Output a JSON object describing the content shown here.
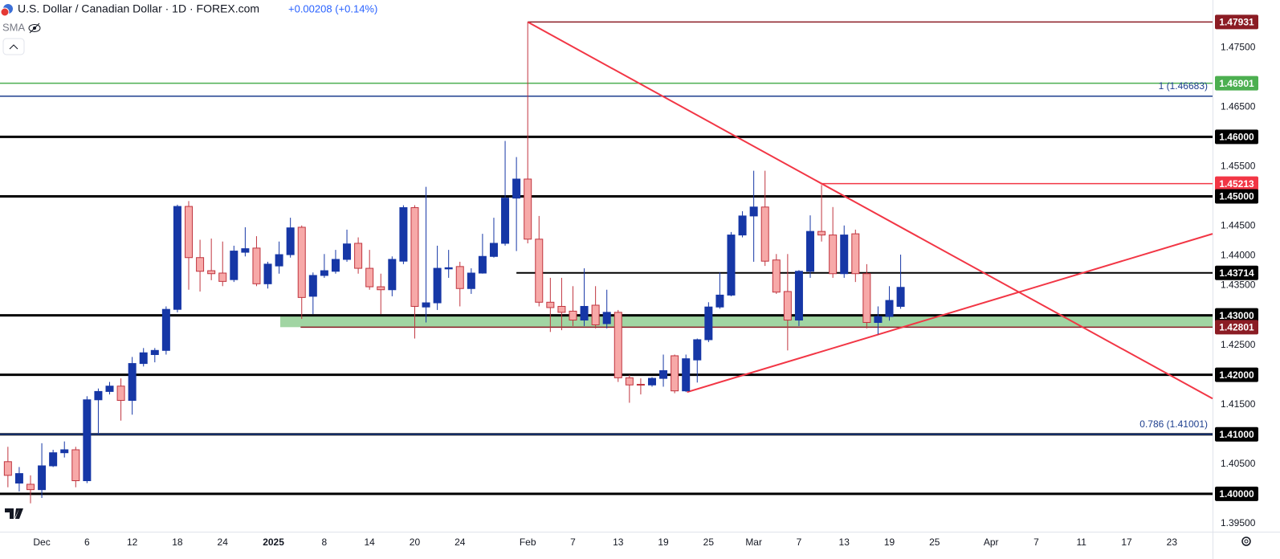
{
  "chart_data": {
    "type": "candlestick",
    "title": "U.S. Dollar / Canadian Dollar · 1D · FOREX.com",
    "change": "+0.00208 (+0.14%)",
    "indicator": "SMA",
    "up_color": "#1637a6",
    "down_color": "#f7a9a8",
    "down_border": "#c0353f",
    "open": [
      1.4054,
      1.4018,
      1.4016,
      1.4007,
      1.4047,
      1.4069,
      1.4074,
      1.4022,
      1.4158,
      1.4172,
      1.4181,
      1.4157,
      1.4219,
      1.4234,
      1.4241,
      1.431,
      1.4483,
      1.4397,
      1.4375,
      1.4371,
      1.436,
      1.4406,
      1.4413,
      1.4353,
      1.4383,
      1.4402,
      1.4448,
      1.4332,
      1.4367,
      1.4374,
      1.4394,
      1.4421,
      1.4379,
      1.4348,
      1.4343,
      1.4391,
      1.4481,
      1.4314,
      1.4321,
      1.4378,
      1.4382,
      1.4345,
      1.4371,
      1.4399,
      1.4421,
      1.4497,
      1.4529,
      1.4428,
      1.4322,
      1.4315,
      1.4307,
      1.4292,
      1.4317,
      1.4286,
      1.4305,
      1.4195,
      1.4184,
      1.4183,
      1.4194,
      1.4232,
      1.4173,
      1.4225,
      1.4259,
      1.4314,
      1.4334,
      1.4435,
      1.4467,
      1.4482,
      1.4393,
      1.434,
      1.4292,
      1.4374,
      1.4441,
      1.4435,
      1.437,
      1.4437,
      1.437,
      1.4288,
      1.4298,
      1.4315
    ],
    "high": [
      1.4079,
      1.4045,
      1.4031,
      1.4085,
      1.4074,
      1.4088,
      1.4079,
      1.4164,
      1.4177,
      1.4188,
      1.4194,
      1.423,
      1.4245,
      1.4245,
      1.4315,
      1.4486,
      1.4492,
      1.4427,
      1.4429,
      1.4424,
      1.4417,
      1.4448,
      1.4433,
      1.439,
      1.4424,
      1.4464,
      1.4451,
      1.4372,
      1.4403,
      1.441,
      1.4444,
      1.4431,
      1.441,
      1.437,
      1.4399,
      1.4485,
      1.4485,
      1.4516,
      1.4417,
      1.441,
      1.439,
      1.4379,
      1.4437,
      1.4464,
      1.4593,
      1.4566,
      1.4793,
      1.4467,
      1.4363,
      1.4363,
      1.4349,
      1.4379,
      1.4349,
      1.4343,
      1.4309,
      1.42,
      1.4194,
      1.4196,
      1.4234,
      1.4234,
      1.4234,
      1.4261,
      1.4322,
      1.4372,
      1.444,
      1.4475,
      1.4543,
      1.4543,
      1.4403,
      1.4403,
      1.4376,
      1.4468,
      1.4519,
      1.4482,
      1.4451,
      1.4444,
      1.4386,
      1.4315,
      1.4349,
      1.4402
    ],
    "low": [
      1.4011,
      1.4004,
      1.3984,
      1.3993,
      1.4045,
      1.4061,
      1.4011,
      1.4018,
      1.4099,
      1.4167,
      1.4123,
      1.4133,
      1.4214,
      1.4221,
      1.4234,
      1.4305,
      1.4343,
      1.434,
      1.4359,
      1.4349,
      1.4356,
      1.4399,
      1.4349,
      1.4345,
      1.437,
      1.4397,
      1.4294,
      1.4302,
      1.4363,
      1.437,
      1.439,
      1.437,
      1.4343,
      1.4302,
      1.4332,
      1.4386,
      1.4261,
      1.4288,
      1.4309,
      1.4363,
      1.4315,
      1.4336,
      1.437,
      1.4397,
      1.4417,
      1.4408,
      1.4421,
      1.4315,
      1.4272,
      1.4275,
      1.4282,
      1.4282,
      1.4278,
      1.4278,
      1.4188,
      1.4153,
      1.4167,
      1.418,
      1.418,
      1.4169,
      1.4171,
      1.4187,
      1.4255,
      1.4311,
      1.4332,
      1.4431,
      1.439,
      1.4383,
      1.4336,
      1.4241,
      1.4282,
      1.4363,
      1.4424,
      1.4363,
      1.4363,
      1.4356,
      1.4278,
      1.4268,
      1.4291,
      1.4311
    ],
    "close": [
      1.4031,
      1.4034,
      1.4007,
      1.4047,
      1.4069,
      1.4074,
      1.4022,
      1.4158,
      1.4172,
      1.4181,
      1.4157,
      1.4219,
      1.4237,
      1.4241,
      1.431,
      1.4483,
      1.4397,
      1.4374,
      1.437,
      1.4357,
      1.4408,
      1.4412,
      1.4353,
      1.4386,
      1.4402,
      1.4447,
      1.433,
      1.4367,
      1.4375,
      1.4394,
      1.442,
      1.4379,
      1.4348,
      1.4343,
      1.4394,
      1.4481,
      1.4315,
      1.4321,
      1.4379,
      1.438,
      1.4345,
      1.4371,
      1.4399,
      1.4421,
      1.4497,
      1.4529,
      1.4428,
      1.4322,
      1.4313,
      1.4305,
      1.4292,
      1.4315,
      1.4284,
      1.4305,
      1.4195,
      1.4183,
      1.4183,
      1.4194,
      1.4207,
      1.4173,
      1.4227,
      1.4259,
      1.4314,
      1.4334,
      1.4435,
      1.4467,
      1.4482,
      1.4391,
      1.4339,
      1.4292,
      1.4374,
      1.4441,
      1.4435,
      1.437,
      1.4435,
      1.437,
      1.4288,
      1.4298,
      1.4325,
      1.4347
    ],
    "xlim": [
      -0.7,
      106.6
    ],
    "ylim": [
      1.39363,
      1.483
    ],
    "xticks": [
      {
        "value": 3,
        "label": "Dec"
      },
      {
        "value": 7,
        "label": "6"
      },
      {
        "value": 11,
        "label": "12"
      },
      {
        "value": 15,
        "label": "18"
      },
      {
        "value": 19,
        "label": "24"
      },
      {
        "value": 23.5,
        "label": "2025"
      },
      {
        "value": 28,
        "label": "8"
      },
      {
        "value": 32,
        "label": "14"
      },
      {
        "value": 36,
        "label": "20"
      },
      {
        "value": 40,
        "label": "24"
      },
      {
        "value": 46,
        "label": "Feb"
      },
      {
        "value": 50,
        "label": "7"
      },
      {
        "value": 54,
        "label": "13"
      },
      {
        "value": 58,
        "label": "19"
      },
      {
        "value": 62,
        "label": "25"
      },
      {
        "value": 66,
        "label": "Mar"
      },
      {
        "value": 70,
        "label": "7"
      },
      {
        "value": 74,
        "label": "13"
      },
      {
        "value": 78,
        "label": "19"
      },
      {
        "value": 82,
        "label": "25"
      },
      {
        "value": 87,
        "label": "Apr"
      },
      {
        "value": 91,
        "label": "7"
      },
      {
        "value": 95,
        "label": "11"
      },
      {
        "value": 99,
        "label": "17"
      },
      {
        "value": 103,
        "label": "23"
      }
    ],
    "yticks": [
      {
        "value": 1.395,
        "label": "1.39500"
      },
      {
        "value": 1.405,
        "label": "1.40500"
      },
      {
        "value": 1.415,
        "label": "1.41500"
      },
      {
        "value": 1.425,
        "label": "1.42500"
      },
      {
        "value": 1.435,
        "label": "1.43500"
      },
      {
        "value": 1.44,
        "label": "1.44000"
      },
      {
        "value": 1.445,
        "label": "1.44500"
      },
      {
        "value": 1.455,
        "label": "1.45500"
      },
      {
        "value": 1.465,
        "label": "1.46500"
      },
      {
        "value": 1.475,
        "label": "1.47500"
      }
    ],
    "zone": {
      "low": 1.42801,
      "high": 1.43,
      "from": 24.1,
      "color": "#81c784"
    },
    "levels": [
      {
        "value": 1.47931,
        "label": "1.47931",
        "color": "#8b1c24",
        "bold": false,
        "from": 46
      },
      {
        "value": 1.46901,
        "label": "1.46901",
        "color": "#4caf50",
        "bold": false
      },
      {
        "value": 1.46683,
        "note": "1 (1.46683)",
        "color": "#1e3f8f",
        "bold": false
      },
      {
        "value": 1.46,
        "label": "1.46000",
        "color": "#000000",
        "bold": true
      },
      {
        "value": 1.45213,
        "label": "1.45213",
        "color": "#f23645",
        "bold": false,
        "from": 71.9
      },
      {
        "value": 1.45,
        "label": "1.45000",
        "color": "#000000",
        "bold": true
      },
      {
        "value": 1.43714,
        "label": "1.43714",
        "color": "#000000",
        "bold": false,
        "from": 45
      },
      {
        "value": 1.43,
        "label": "1.43000",
        "color": "#000000",
        "bold": true
      },
      {
        "value": 1.42801,
        "label": "1.42801",
        "color": "#8b1c24",
        "bold": false,
        "from": 25.9
      },
      {
        "value": 1.42,
        "label": "1.42000",
        "color": "#000000",
        "bold": true
      },
      {
        "value": 1.41,
        "label": "1.41000",
        "color": "#000000",
        "bold": true
      },
      {
        "value": 1.41001,
        "note": "0.786 (1.41001)",
        "color": "#1e3f8f",
        "bold": false
      },
      {
        "value": 1.4,
        "label": "1.40000",
        "color": "#000000",
        "bold": true
      }
    ],
    "trendlines": [
      {
        "x": [
          46,
          106.6
        ],
        "y": [
          1.4793,
          1.416
        ],
        "color": "#f23645"
      },
      {
        "x": [
          60.1,
          106.6
        ],
        "y": [
          1.4171,
          1.4437
        ],
        "color": "#f23645"
      }
    ]
  }
}
